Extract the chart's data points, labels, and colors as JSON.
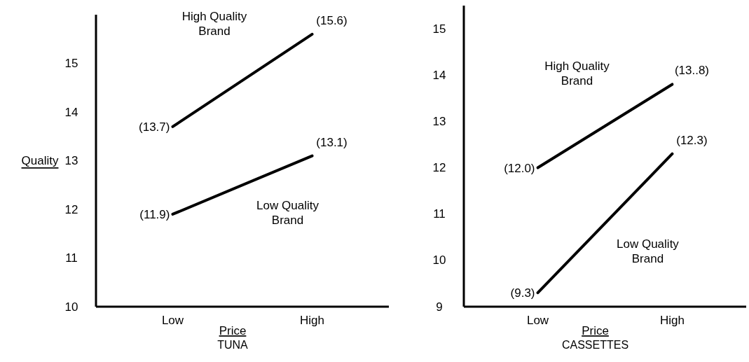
{
  "chart_data": [
    {
      "type": "line",
      "title": "TUNA",
      "xlabel": "Price",
      "ylabel": "Quality",
      "categories": [
        "Low",
        "High"
      ],
      "ylim": [
        10,
        16
      ],
      "yticks": [
        10,
        11,
        12,
        13,
        14,
        15
      ],
      "marker": "none",
      "series": [
        {
          "name": "High Quality Brand",
          "color": "#000000",
          "values": [
            13.7,
            15.6
          ],
          "value_labels": [
            "(13.7)",
            "(15.6)"
          ]
        },
        {
          "name": "Low Quality Brand",
          "color": "#000000",
          "values": [
            11.9,
            13.1
          ],
          "value_labels": [
            "(11.9)",
            "(13.1)"
          ]
        }
      ]
    },
    {
      "type": "line",
      "title": "CASSETTES",
      "xlabel": "Price",
      "categories": [
        "Low",
        "High"
      ],
      "ylim": [
        9,
        15.5
      ],
      "yticks": [
        9,
        10,
        11,
        12,
        13,
        14,
        15
      ],
      "marker": "none",
      "series": [
        {
          "name": "High Quality Brand",
          "color": "#000000",
          "values": [
            12.0,
            13.8
          ],
          "value_labels": [
            "(12.0)",
            "(13..8)"
          ]
        },
        {
          "name": "Low Quality Brand",
          "color": "#000000",
          "values": [
            9.3,
            12.3
          ],
          "value_labels": [
            "(9.3)",
            "(12.3)"
          ]
        }
      ]
    }
  ]
}
